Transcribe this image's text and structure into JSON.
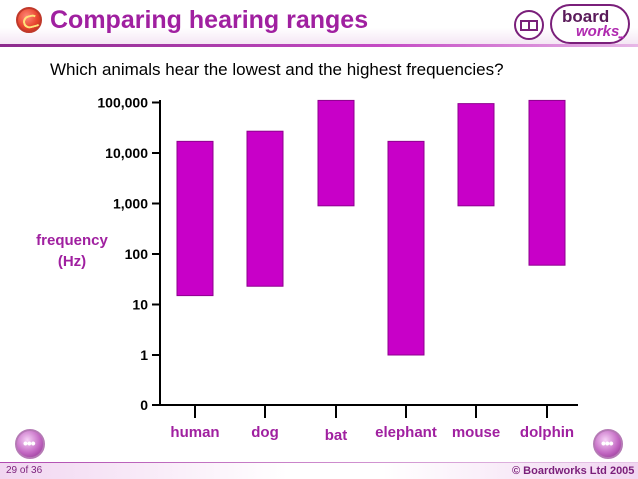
{
  "header": {
    "title": "Comparing hearing ranges",
    "logo_top": "board",
    "logo_bottom": "works",
    "logo_dots": "•••"
  },
  "question": "Which animals hear the lowest and the highest frequencies?",
  "chart_data": {
    "type": "bar",
    "title": "Comparing hearing ranges",
    "ylabel_line1": "frequency",
    "ylabel_line2": "(Hz)",
    "xlabel": "",
    "y_scale": "log10",
    "ylim": [
      0,
      100000
    ],
    "y_ticks": [
      {
        "value": 0,
        "label": "0"
      },
      {
        "value": 1,
        "label": "1"
      },
      {
        "value": 10,
        "label": "10"
      },
      {
        "value": 100,
        "label": "100"
      },
      {
        "value": 1000,
        "label": "1,000"
      },
      {
        "value": 10000,
        "label": "10,000"
      },
      {
        "value": 100000,
        "label": "100,000"
      }
    ],
    "categories": [
      "human",
      "dog",
      "bat",
      "elephant",
      "mouse",
      "dolphin"
    ],
    "ranges": [
      {
        "name": "human",
        "low": 15,
        "high": 17000
      },
      {
        "name": "dog",
        "low": 23,
        "high": 27000
      },
      {
        "name": "bat",
        "low": 900,
        "high": 110000
      },
      {
        "name": "elephant",
        "low": 1,
        "high": 17000
      },
      {
        "name": "mouse",
        "low": 900,
        "high": 95000
      },
      {
        "name": "dolphin",
        "low": 60,
        "high": 110000
      }
    ],
    "bar_color": "#c800c8",
    "grid": false
  },
  "footer": {
    "slide_counter": "29 of 36",
    "copyright": "© Boardworks Ltd 2005",
    "prev_symbol": "•••",
    "next_symbol": "•••"
  }
}
